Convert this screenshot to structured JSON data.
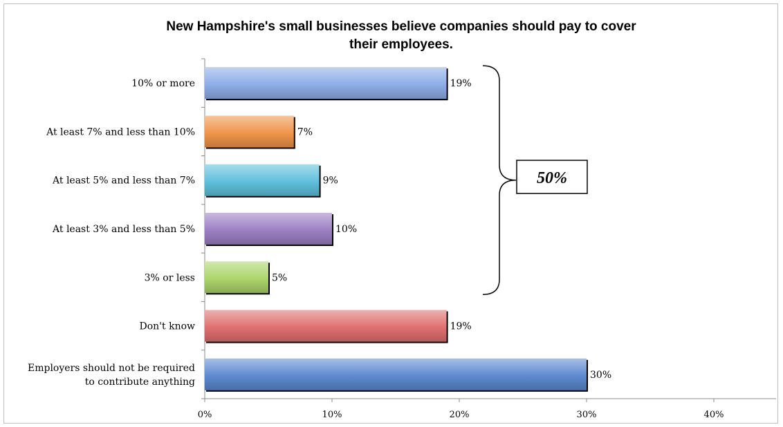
{
  "chart_data": {
    "type": "bar",
    "orientation": "horizontal",
    "title_lines": [
      "New Hampshire's small businesses believe companies should pay to cover",
      "their employees."
    ],
    "categories": [
      "10% or more",
      "At least 7% and less than 10%",
      "At least 5% and less than 7%",
      "At least 3% and less than 5%",
      "3% or less",
      "Don't know",
      "Employers should not be required to contribute anything"
    ],
    "category_lines": [
      [
        "10% or more"
      ],
      [
        "At least 7% and less than 10%"
      ],
      [
        "At least 5% and less than 7%"
      ],
      [
        "At least 3% and less than 5%"
      ],
      [
        "3% or less"
      ],
      [
        "Don't know"
      ],
      [
        "Employers should not be required",
        "to contribute anything"
      ]
    ],
    "values": [
      19,
      7,
      9,
      10,
      5,
      19,
      30
    ],
    "value_labels": [
      "19%",
      "7%",
      "9%",
      "10%",
      "5%",
      "19%",
      "30%"
    ],
    "colors": [
      "#8eaee8",
      "#f0954a",
      "#5fc0dc",
      "#9c80c4",
      "#acd56a",
      "#e07070",
      "#5d8ad0"
    ],
    "xlim": [
      0,
      44
    ],
    "xticks": [
      0,
      10,
      20,
      30,
      40
    ],
    "xtick_labels": [
      "0%",
      "10%",
      "20%",
      "30%",
      "40%"
    ],
    "grid": false,
    "annotation": {
      "text": "50%",
      "spans_categories": [
        "10% or more",
        "3% or less"
      ]
    }
  }
}
